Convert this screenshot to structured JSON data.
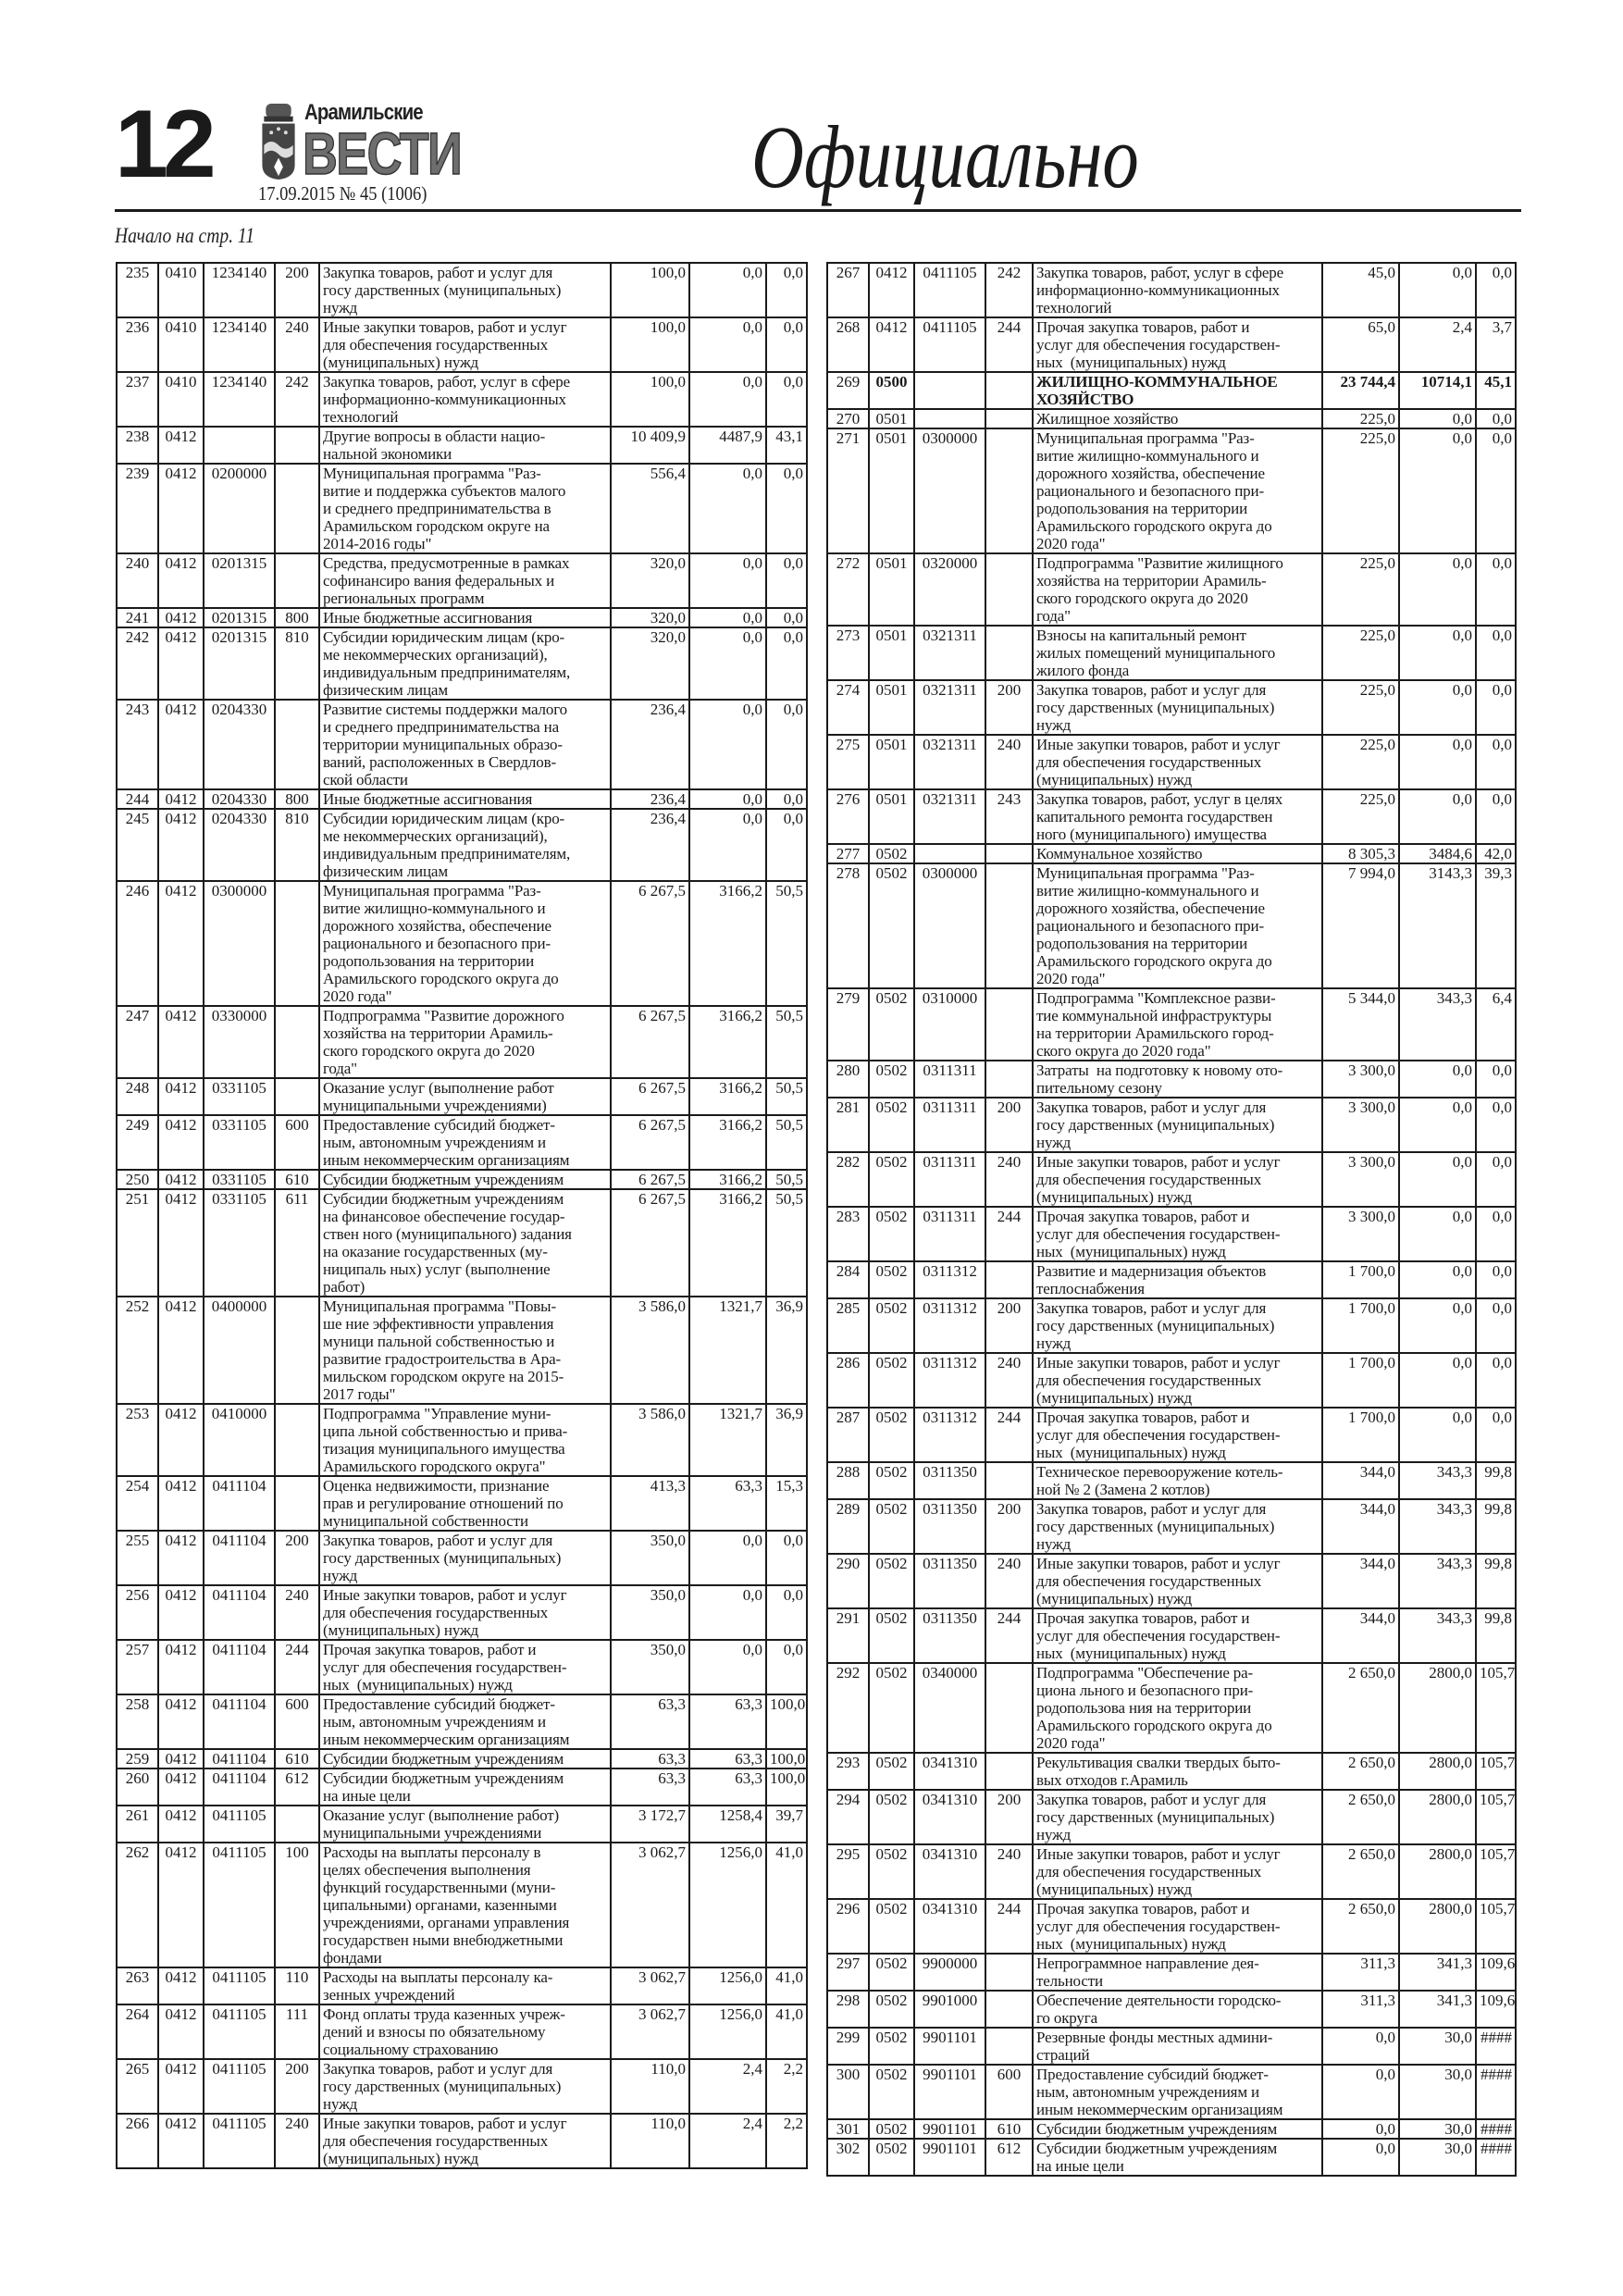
{
  "header": {
    "page_number": "12",
    "logo_small": "Арамильские",
    "logo_big": "ВЕСТИ",
    "issue": "17.09.2015  № 45 (1006)",
    "section_title": "Официально",
    "continued_from": "Начало на стр. 11"
  },
  "left_table": {
    "rows": [
      [
        "235",
        "0410",
        "1234140",
        "200",
        "Закупка товаров, работ и услуг для\nгосу дарственных (муниципальных)\nнужд",
        "100,0",
        "0,0",
        "0,0"
      ],
      [
        "236",
        "0410",
        "1234140",
        "240",
        "Иные закупки товаров, работ и услуг\nдля обеспечения государственных\n(муниципальных) нужд",
        "100,0",
        "0,0",
        "0,0"
      ],
      [
        "237",
        "0410",
        "1234140",
        "242",
        "Закупка товаров, работ, услуг в сфере\nинформационно-коммуникационных\nтехнологий",
        "100,0",
        "0,0",
        "0,0"
      ],
      [
        "238",
        "0412",
        "",
        "",
        "Другие вопросы в области нацио-\nнальной экономики",
        "10 409,9",
        "4487,9",
        "43,1"
      ],
      [
        "239",
        "0412",
        "0200000",
        "",
        "Муниципальная программа \"Раз-\nвитие и поддержка субъектов малого\nи среднего предпринимательства в\nАрамильском городском округе на\n2014-2016 годы\"",
        "556,4",
        "0,0",
        "0,0"
      ],
      [
        "240",
        "0412",
        "0201315",
        "",
        "Средства, предусмотренные в рамках\nсофинансиро вания федеральных и\nрегиональных программ",
        "320,0",
        "0,0",
        "0,0"
      ],
      [
        "241",
        "0412",
        "0201315",
        "800",
        "Иные бюджетные ассигнования",
        "320,0",
        "0,0",
        "0,0"
      ],
      [
        "242",
        "0412",
        "0201315",
        "810",
        "Субсидии юридическим лицам (кро-\nме некоммерческих организаций),\nиндивидуальным предпринимателям,\nфизическим лицам",
        "320,0",
        "0,0",
        "0,0"
      ],
      [
        "243",
        "0412",
        "0204330",
        "",
        "Развитие системы поддержки малого\nи среднего предпринимательства на\nтерритории муниципальных образо-\nваний, расположенных в Свердлов-\nской области",
        "236,4",
        "0,0",
        "0,0"
      ],
      [
        "244",
        "0412",
        "0204330",
        "800",
        "Иные бюджетные ассигнования",
        "236,4",
        "0,0",
        "0,0"
      ],
      [
        "245",
        "0412",
        "0204330",
        "810",
        "Субсидии юридическим лицам (кро-\nме некоммерческих организаций),\nиндивидуальным предпринимателям,\nфизическим лицам",
        "236,4",
        "0,0",
        "0,0"
      ],
      [
        "246",
        "0412",
        "0300000",
        "",
        "Муниципальная программа \"Раз-\nвитие жилищно-коммунального и\nдорожного хозяйства, обеспечение\nрационального и безопасного при-\nродопользования на территории\nАрамильского городского округа до\n2020 года\"",
        "6 267,5",
        "3166,2",
        "50,5"
      ],
      [
        "247",
        "0412",
        "0330000",
        "",
        "Подпрограмма \"Развитие дорожного\nхозяйства на территории Арамиль-\nского городского округа до 2020\nгода\"",
        "6 267,5",
        "3166,2",
        "50,5"
      ],
      [
        "248",
        "0412",
        "0331105",
        "",
        "Оказание услуг (выполнение работ\nмуниципальными учреждениями)",
        "6 267,5",
        "3166,2",
        "50,5"
      ],
      [
        "249",
        "0412",
        "0331105",
        "600",
        "Предоставление субсидий бюджет-\nным, автономным учреждениям и\nиным некоммерческим организациям",
        "6 267,5",
        "3166,2",
        "50,5"
      ],
      [
        "250",
        "0412",
        "0331105",
        "610",
        "Субсидии бюджетным учреждениям",
        "6 267,5",
        "3166,2",
        "50,5"
      ],
      [
        "251",
        "0412",
        "0331105",
        "611",
        "Субсидии бюджетным учреждениям\nна финансовое обеспечение государ-\nствен ного (муниципального) задания\nна оказание государственных (му-\nниципаль ных) услуг (выполнение\nработ)",
        "6 267,5",
        "3166,2",
        "50,5"
      ],
      [
        "252",
        "0412",
        "0400000",
        "",
        "Муниципальная программа \"Повы-\nше ние эффективности управления\nмуници пальной собственностью и\nразвитие градостроительства в Ара-\nмильском городском округе на 2015-\n2017 годы\"",
        "3 586,0",
        "1321,7",
        "36,9"
      ],
      [
        "253",
        "0412",
        "0410000",
        "",
        "Подпрограмма \"Управление муни-\nципа льной собственностью и прива-\nтизация муниципального имущества\nАрамильского городского округа\"",
        "3 586,0",
        "1321,7",
        "36,9"
      ],
      [
        "254",
        "0412",
        "0411104",
        "",
        "Оценка недвижимости, признание\nправ и регулирование отношений по\nмуниципальной собственности",
        "413,3",
        "63,3",
        "15,3"
      ],
      [
        "255",
        "0412",
        "0411104",
        "200",
        "Закупка товаров, работ и услуг для\nгосу дарственных (муниципальных)\nнужд",
        "350,0",
        "0,0",
        "0,0"
      ],
      [
        "256",
        "0412",
        "0411104",
        "240",
        "Иные закупки товаров, работ и услуг\nдля обеспечения государственных\n(муниципальных) нужд",
        "350,0",
        "0,0",
        "0,0"
      ],
      [
        "257",
        "0412",
        "0411104",
        "244",
        "Прочая закупка товаров, работ и\nуслуг для обеспечения государствен-\nных  (муниципальных) нужд",
        "350,0",
        "0,0",
        "0,0"
      ],
      [
        "258",
        "0412",
        "0411104",
        "600",
        "Предоставление субсидий бюджет-\nным, автономным учреждениям и\nиным некоммерческим организациям",
        "63,3",
        "63,3",
        "100,0"
      ],
      [
        "259",
        "0412",
        "0411104",
        "610",
        "Субсидии бюджетным учреждениям",
        "63,3",
        "63,3",
        "100,0"
      ],
      [
        "260",
        "0412",
        "0411104",
        "612",
        "Субсидии бюджетным учреждениям\nна иные цели",
        "63,3",
        "63,3",
        "100,0"
      ],
      [
        "261",
        "0412",
        "0411105",
        "",
        "Оказание услуг (выполнение работ)\nмуниципальными учреждениями",
        "3 172,7",
        "1258,4",
        "39,7"
      ],
      [
        "262",
        "0412",
        "0411105",
        "100",
        "Расходы на выплаты персоналу в\nцелях обеспечения выполнения\nфункций государственными (муни-\nципальными) органами, казенными\nучреждениями, органами управления\nгосударствен ными внебюджетными\nфондами",
        "3 062,7",
        "1256,0",
        "41,0"
      ],
      [
        "263",
        "0412",
        "0411105",
        "110",
        "Расходы на выплаты персоналу ка-\nзенных учреждений",
        "3 062,7",
        "1256,0",
        "41,0"
      ],
      [
        "264",
        "0412",
        "0411105",
        "111",
        "Фонд оплаты труда казенных учреж-\nдений и взносы по обязательному\nсоциальному страхованию",
        "3 062,7",
        "1256,0",
        "41,0"
      ],
      [
        "265",
        "0412",
        "0411105",
        "200",
        "Закупка товаров, работ и услуг для\nгосу дарственных (муниципальных)\nнужд",
        "110,0",
        "2,4",
        "2,2"
      ],
      [
        "266",
        "0412",
        "0411105",
        "240",
        "Иные закупки товаров, работ и услуг\nдля обеспечения государственных\n(муниципальных) нужд",
        "110,0",
        "2,4",
        "2,2"
      ]
    ]
  },
  "right_table": {
    "bold_rows": [
      "269"
    ],
    "rows": [
      [
        "267",
        "0412",
        "0411105",
        "242",
        "Закупка товаров, работ, услуг в сфере\nинформационно-коммуникационных\nтехнологий",
        "45,0",
        "0,0",
        "0,0"
      ],
      [
        "268",
        "0412",
        "0411105",
        "244",
        "Прочая закупка товаров, работ и\nуслуг для обеспечения государствен-\nных  (муниципальных) нужд",
        "65,0",
        "2,4",
        "3,7"
      ],
      [
        "269",
        "0500",
        "",
        "",
        "ЖИЛИЩНО-КОММУНАЛЬНОЕ\nХОЗЯЙСТВО",
        "23 744,4",
        "10714,1",
        "45,1"
      ],
      [
        "270",
        "0501",
        "",
        "",
        "Жилищное хозяйство",
        "225,0",
        "0,0",
        "0,0"
      ],
      [
        "271",
        "0501",
        "0300000",
        "",
        "Муниципальная программа \"Раз-\nвитие жилищно-коммунального и\nдорожного хозяйства, обеспечение\nрационального и безопасного при-\nродопользования на территории\nАрамильского городского округа до\n2020 года\"",
        "225,0",
        "0,0",
        "0,0"
      ],
      [
        "272",
        "0501",
        "0320000",
        "",
        "Подпрограмма \"Развитие жилищного\nхозяйства на территории Арамиль-\nского городского округа до 2020\nгода\"",
        "225,0",
        "0,0",
        "0,0"
      ],
      [
        "273",
        "0501",
        "0321311",
        "",
        "Взносы на капитальный ремонт\nжилых помещений муниципального\nжилого фонда",
        "225,0",
        "0,0",
        "0,0"
      ],
      [
        "274",
        "0501",
        "0321311",
        "200",
        "Закупка товаров, работ и услуг для\nгосу дарственных (муниципальных)\nнужд",
        "225,0",
        "0,0",
        "0,0"
      ],
      [
        "275",
        "0501",
        "0321311",
        "240",
        "Иные закупки товаров, работ и услуг\nдля обеспечения государственных\n(муниципальных) нужд",
        "225,0",
        "0,0",
        "0,0"
      ],
      [
        "276",
        "0501",
        "0321311",
        "243",
        "Закупка товаров, работ, услуг в целях\nкапитального ремонта государствен\nного (муниципального) имущества",
        "225,0",
        "0,0",
        "0,0"
      ],
      [
        "277",
        "0502",
        "",
        "",
        "Коммунальное хозяйство",
        "8 305,3",
        "3484,6",
        "42,0"
      ],
      [
        "278",
        "0502",
        "0300000",
        "",
        "Муниципальная программа \"Раз-\nвитие жилищно-коммунального и\nдорожного хозяйства, обеспечение\nрационального и безопасного при-\nродопользования на территории\nАрамильского городского округа до\n2020 года\"",
        "7 994,0",
        "3143,3",
        "39,3"
      ],
      [
        "279",
        "0502",
        "0310000",
        "",
        "Подпрограмма \"Комплексное разви-\nтие коммунальной инфраструктуры\nна территории Арамильского город-\nского округа до 2020 года\"",
        "5 344,0",
        "343,3",
        "6,4"
      ],
      [
        "280",
        "0502",
        "0311311",
        "",
        "Затраты  на подготовку к новому ото-\nпительному сезону",
        "3 300,0",
        "0,0",
        "0,0"
      ],
      [
        "281",
        "0502",
        "0311311",
        "200",
        "Закупка товаров, работ и услуг для\nгосу дарственных (муниципальных)\nнужд",
        "3 300,0",
        "0,0",
        "0,0"
      ],
      [
        "282",
        "0502",
        "0311311",
        "240",
        "Иные закупки товаров, работ и услуг\nдля обеспечения государственных\n(муниципальных) нужд",
        "3 300,0",
        "0,0",
        "0,0"
      ],
      [
        "283",
        "0502",
        "0311311",
        "244",
        "Прочая закупка товаров, работ и\nуслуг для обеспечения государствен-\nных  (муниципальных) нужд",
        "3 300,0",
        "0,0",
        "0,0"
      ],
      [
        "284",
        "0502",
        "0311312",
        "",
        "Развитие и мадернизация объектов\nтеплоснабжения",
        "1 700,0",
        "0,0",
        "0,0"
      ],
      [
        "285",
        "0502",
        "0311312",
        "200",
        "Закупка товаров, работ и услуг для\nгосу дарственных (муниципальных)\nнужд",
        "1 700,0",
        "0,0",
        "0,0"
      ],
      [
        "286",
        "0502",
        "0311312",
        "240",
        "Иные закупки товаров, работ и услуг\nдля обеспечения государственных\n(муниципальных) нужд",
        "1 700,0",
        "0,0",
        "0,0"
      ],
      [
        "287",
        "0502",
        "0311312",
        "244",
        "Прочая закупка товаров, работ и\nуслуг для обеспечения государствен-\nных  (муниципальных) нужд",
        "1 700,0",
        "0,0",
        "0,0"
      ],
      [
        "288",
        "0502",
        "0311350",
        "",
        "Техническое перевооружение котель-\nной № 2 (Замена 2 котлов)",
        "344,0",
        "343,3",
        "99,8"
      ],
      [
        "289",
        "0502",
        "0311350",
        "200",
        "Закупка товаров, работ и услуг для\nгосу дарственных (муниципальных)\nнужд",
        "344,0",
        "343,3",
        "99,8"
      ],
      [
        "290",
        "0502",
        "0311350",
        "240",
        "Иные закупки товаров, работ и услуг\nдля обеспечения государственных\n(муниципальных) нужд",
        "344,0",
        "343,3",
        "99,8"
      ],
      [
        "291",
        "0502",
        "0311350",
        "244",
        "Прочая закупка товаров, работ и\nуслуг для обеспечения государствен-\nных  (муниципальных) нужд",
        "344,0",
        "343,3",
        "99,8"
      ],
      [
        "292",
        "0502",
        "0340000",
        "",
        "Подпрограмма \"Обеспечение ра-\nциона льного и безопасного при-\nродопользова ния на территории\nАрамильского городского округа до\n2020 года\"",
        "2 650,0",
        "2800,0",
        "105,7"
      ],
      [
        "293",
        "0502",
        "0341310",
        "",
        "Рекультивация свалки твердых быто-\nвых отходов г.Арамиль",
        "2 650,0",
        "2800,0",
        "105,7"
      ],
      [
        "294",
        "0502",
        "0341310",
        "200",
        "Закупка товаров, работ и услуг для\nгосу дарственных (муниципальных)\nнужд",
        "2 650,0",
        "2800,0",
        "105,7"
      ],
      [
        "295",
        "0502",
        "0341310",
        "240",
        "Иные закупки товаров, работ и услуг\nдля обеспечения государственных\n(муниципальных) нужд",
        "2 650,0",
        "2800,0",
        "105,7"
      ],
      [
        "296",
        "0502",
        "0341310",
        "244",
        "Прочая закупка товаров, работ и\nуслуг для обеспечения государствен-\nных  (муниципальных) нужд",
        "2 650,0",
        "2800,0",
        "105,7"
      ],
      [
        "297",
        "0502",
        "9900000",
        "",
        "Непрограммное направление дея-\nтельности",
        "311,3",
        "341,3",
        "109,6"
      ],
      [
        "298",
        "0502",
        "9901000",
        "",
        "Обеспечение деятельности городско-\nго округа",
        "311,3",
        "341,3",
        "109,6"
      ],
      [
        "299",
        "0502",
        "9901101",
        "",
        "Резервные фонды местных админи-\nстраций",
        "0,0",
        "30,0",
        "####"
      ],
      [
        "300",
        "0502",
        "9901101",
        "600",
        "Предоставление субсидий бюджет-\nным, автономным учреждениям и\nиным некоммерческим организациям",
        "0,0",
        "30,0",
        "####"
      ],
      [
        "301",
        "0502",
        "9901101",
        "610",
        "Субсидии бюджетным учреждениям",
        "0,0",
        "30,0",
        "####"
      ],
      [
        "302",
        "0502",
        "9901101",
        "612",
        "Субсидии бюджетным учреждениям\nна иные цели",
        "0,0",
        "30,0",
        "####"
      ]
    ]
  }
}
